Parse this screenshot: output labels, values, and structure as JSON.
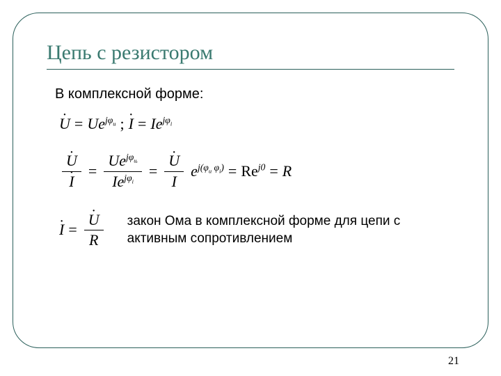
{
  "title": "Цепь с резистором",
  "intro": "В комплексной форме:",
  "eq1": {
    "lhs1": "U",
    "rhs1_base": "Ue",
    "rhs1_sup": "jφ",
    "rhs1_supsub": "u",
    "sep": ";",
    "lhs2": "I",
    "rhs2_base": "Ie",
    "rhs2_sup": "jφ",
    "rhs2_supsub": "i"
  },
  "eq2": {
    "f1_num": "U",
    "f1_den": "I",
    "f2_num_base": "Ue",
    "f2_num_sup": "jφ",
    "f2_num_supsub": "uᵢ",
    "f2_den_base": "Ie",
    "f2_den_sup": "jφ",
    "f2_den_supsub": "i",
    "f3_num": "U",
    "f3_den": "I",
    "exp_base": "e",
    "exp_sup": "j(φ",
    "exp_supsub1": "u",
    "exp_mid": " φ",
    "exp_supsub2": "i",
    "exp_close": ")",
    "re_label": "Re",
    "re_sup": "j0",
    "rhs": "R"
  },
  "eq3": {
    "lhs": "I",
    "num": "U",
    "den": "R"
  },
  "caption": "закон Ома в комплексной форме для цепи с активным сопротивлением",
  "pagenum": "21",
  "colors": {
    "border": "#2a5f5a",
    "title": "#3a7a70",
    "bg": "#ffffff"
  }
}
